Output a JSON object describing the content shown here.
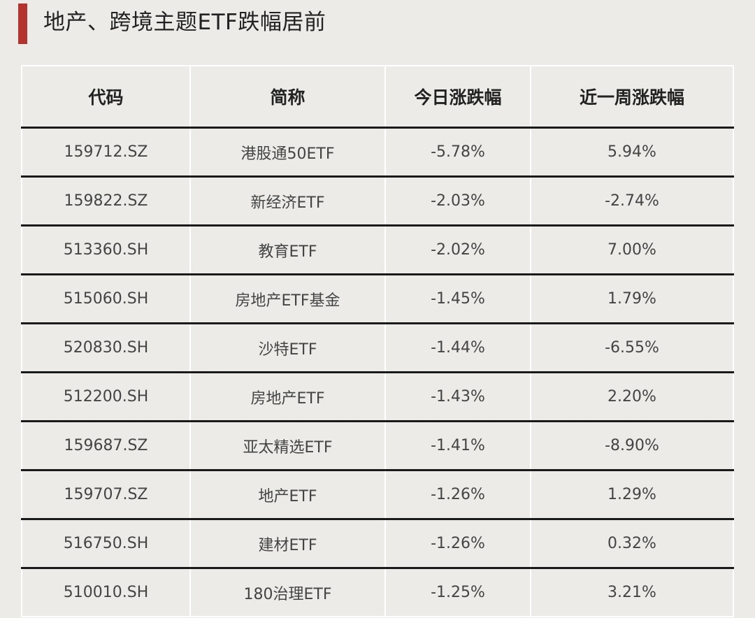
{
  "title": "地产、跨境主题ETF跌幅居前",
  "accent_color": "#b5332e",
  "table": {
    "headers": [
      "代码",
      "简称",
      "今日涨跌幅",
      "近一周涨跌幅"
    ],
    "rows": [
      [
        "159712.SZ",
        "港股通50ETF",
        "-5.78%",
        "5.94%"
      ],
      [
        "159822.SZ",
        "新经济ETF",
        "-2.03%",
        "-2.74%"
      ],
      [
        "513360.SH",
        "教育ETF",
        "-2.02%",
        "7.00%"
      ],
      [
        "515060.SH",
        "房地产ETF基金",
        "-1.45%",
        "1.79%"
      ],
      [
        "520830.SH",
        "沙特ETF",
        "-1.44%",
        "-6.55%"
      ],
      [
        "512200.SH",
        "房地产ETF",
        "-1.43%",
        "2.20%"
      ],
      [
        "159687.SZ",
        "亚太精选ETF",
        "-1.41%",
        "-8.90%"
      ],
      [
        "159707.SZ",
        "地产ETF",
        "-1.26%",
        "1.29%"
      ],
      [
        "516750.SH",
        "建材ETF",
        "-1.26%",
        "0.32%"
      ],
      [
        "510010.SH",
        "180治理ETF",
        "-1.25%",
        "3.21%"
      ]
    ]
  }
}
